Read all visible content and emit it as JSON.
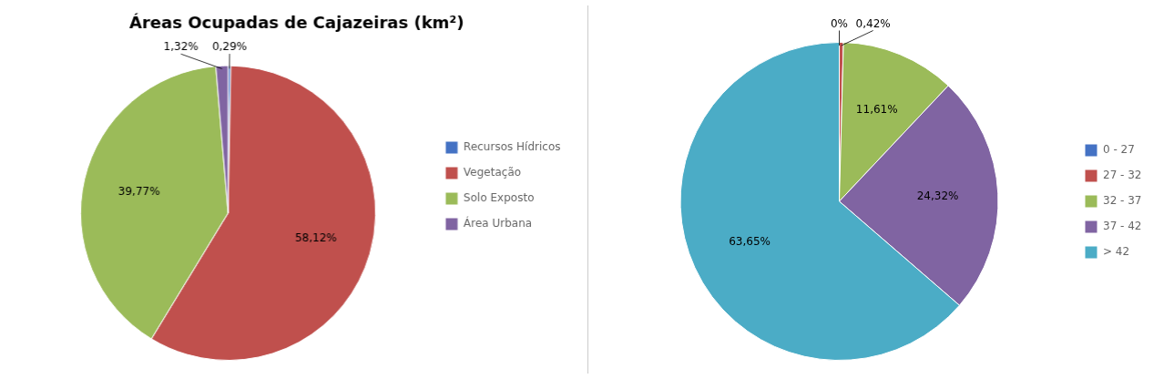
{
  "chart_data": [
    {
      "type": "pie",
      "title": "Áreas Ocupadas de Cajazeiras (km²)",
      "categories": [
        "Recursos Hídricos",
        "Vegetação",
        "Solo Exposto",
        "Área Urbana"
      ],
      "values": [
        0.29,
        58.12,
        39.77,
        1.32
      ],
      "value_labels": [
        "0,29%",
        "58,12%",
        "39,77%",
        "1,32%"
      ],
      "colors": [
        "#4472C4",
        "#C0504D",
        "#9BBB59",
        "#8064A2"
      ],
      "data_labels": true,
      "legend": "right"
    },
    {
      "type": "pie",
      "categories": [
        "0 - 27",
        "27 - 32",
        "32 - 37",
        "37 - 42",
        "> 42"
      ],
      "values": [
        0.0,
        0.42,
        11.61,
        24.32,
        63.65
      ],
      "value_labels": [
        "0%",
        "0,42%",
        "11,61%",
        "24,32%",
        "63,65%"
      ],
      "colors": [
        "#4472C4",
        "#C0504D",
        "#9BBB59",
        "#8064A2",
        "#4BACC6"
      ],
      "data_labels": true,
      "legend": "right"
    }
  ]
}
